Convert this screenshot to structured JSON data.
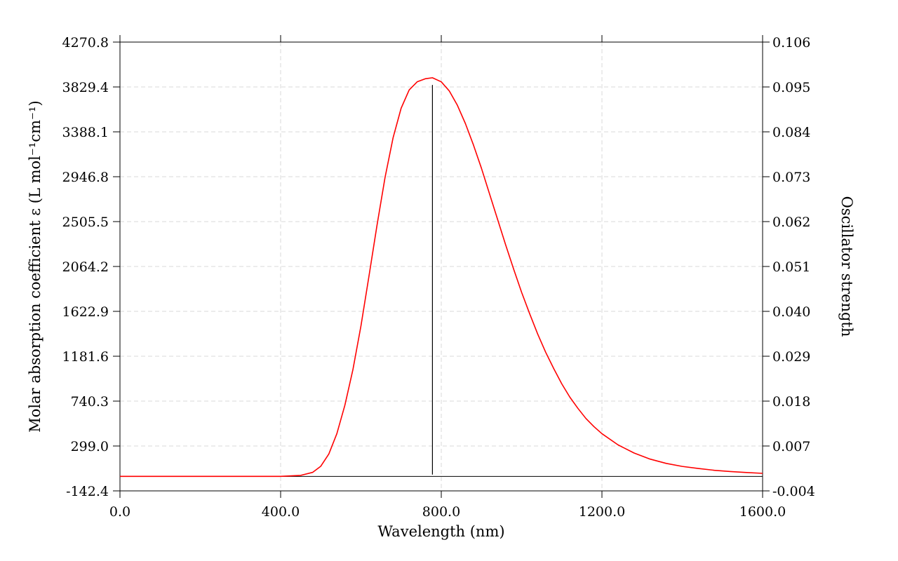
{
  "chart_data": {
    "type": "line",
    "xlabel": "Wavelength (nm)",
    "ylabel_left": "Molar absorption coefficient  ε (L mol⁻¹cm⁻¹)",
    "ylabel_right": "Oscillator strength",
    "xlim": [
      0.0,
      1600.0
    ],
    "ylim_left": [
      -142.4,
      4270.8
    ],
    "ylim_right": [
      -0.004,
      0.106
    ],
    "x_ticks": [
      "0.0",
      "400.0",
      "800.0",
      "1200.0",
      "1600.0"
    ],
    "y_left_ticks": [
      "-142.4",
      "299.0",
      "740.3",
      "1181.6",
      "1622.9",
      "2064.2",
      "2505.5",
      "2946.8",
      "3388.1",
      "3829.4",
      "4270.8"
    ],
    "y_right_ticks": [
      "-0.004",
      "0.007",
      "0.018",
      "0.029",
      "0.040",
      "0.051",
      "0.062",
      "0.073",
      "0.084",
      "0.095",
      "0.106"
    ],
    "grid": true,
    "series": [
      {
        "color": "#ff0000",
        "x": [
          0,
          100,
          200,
          300,
          400,
          450,
          480,
          500,
          520,
          540,
          560,
          580,
          600,
          620,
          640,
          660,
          680,
          700,
          720,
          740,
          760,
          778,
          800,
          820,
          840,
          860,
          880,
          900,
          920,
          940,
          960,
          980,
          1000,
          1020,
          1040,
          1060,
          1080,
          1100,
          1120,
          1140,
          1160,
          1180,
          1200,
          1240,
          1280,
          1320,
          1360,
          1400,
          1440,
          1480,
          1520,
          1560,
          1600
        ],
        "y": [
          0,
          0,
          0,
          0,
          0,
          10,
          40,
          100,
          220,
          420,
          700,
          1050,
          1480,
          1970,
          2470,
          2940,
          3330,
          3620,
          3800,
          3880,
          3910,
          3920,
          3880,
          3790,
          3650,
          3470,
          3260,
          3030,
          2780,
          2530,
          2280,
          2040,
          1810,
          1600,
          1400,
          1220,
          1060,
          910,
          780,
          670,
          570,
          490,
          420,
          310,
          230,
          170,
          128,
          98,
          78,
          60,
          48,
          38,
          30
        ]
      }
    ],
    "sticks": [
      {
        "x": 778,
        "f": 0.0955,
        "color": "#000000"
      }
    ]
  }
}
